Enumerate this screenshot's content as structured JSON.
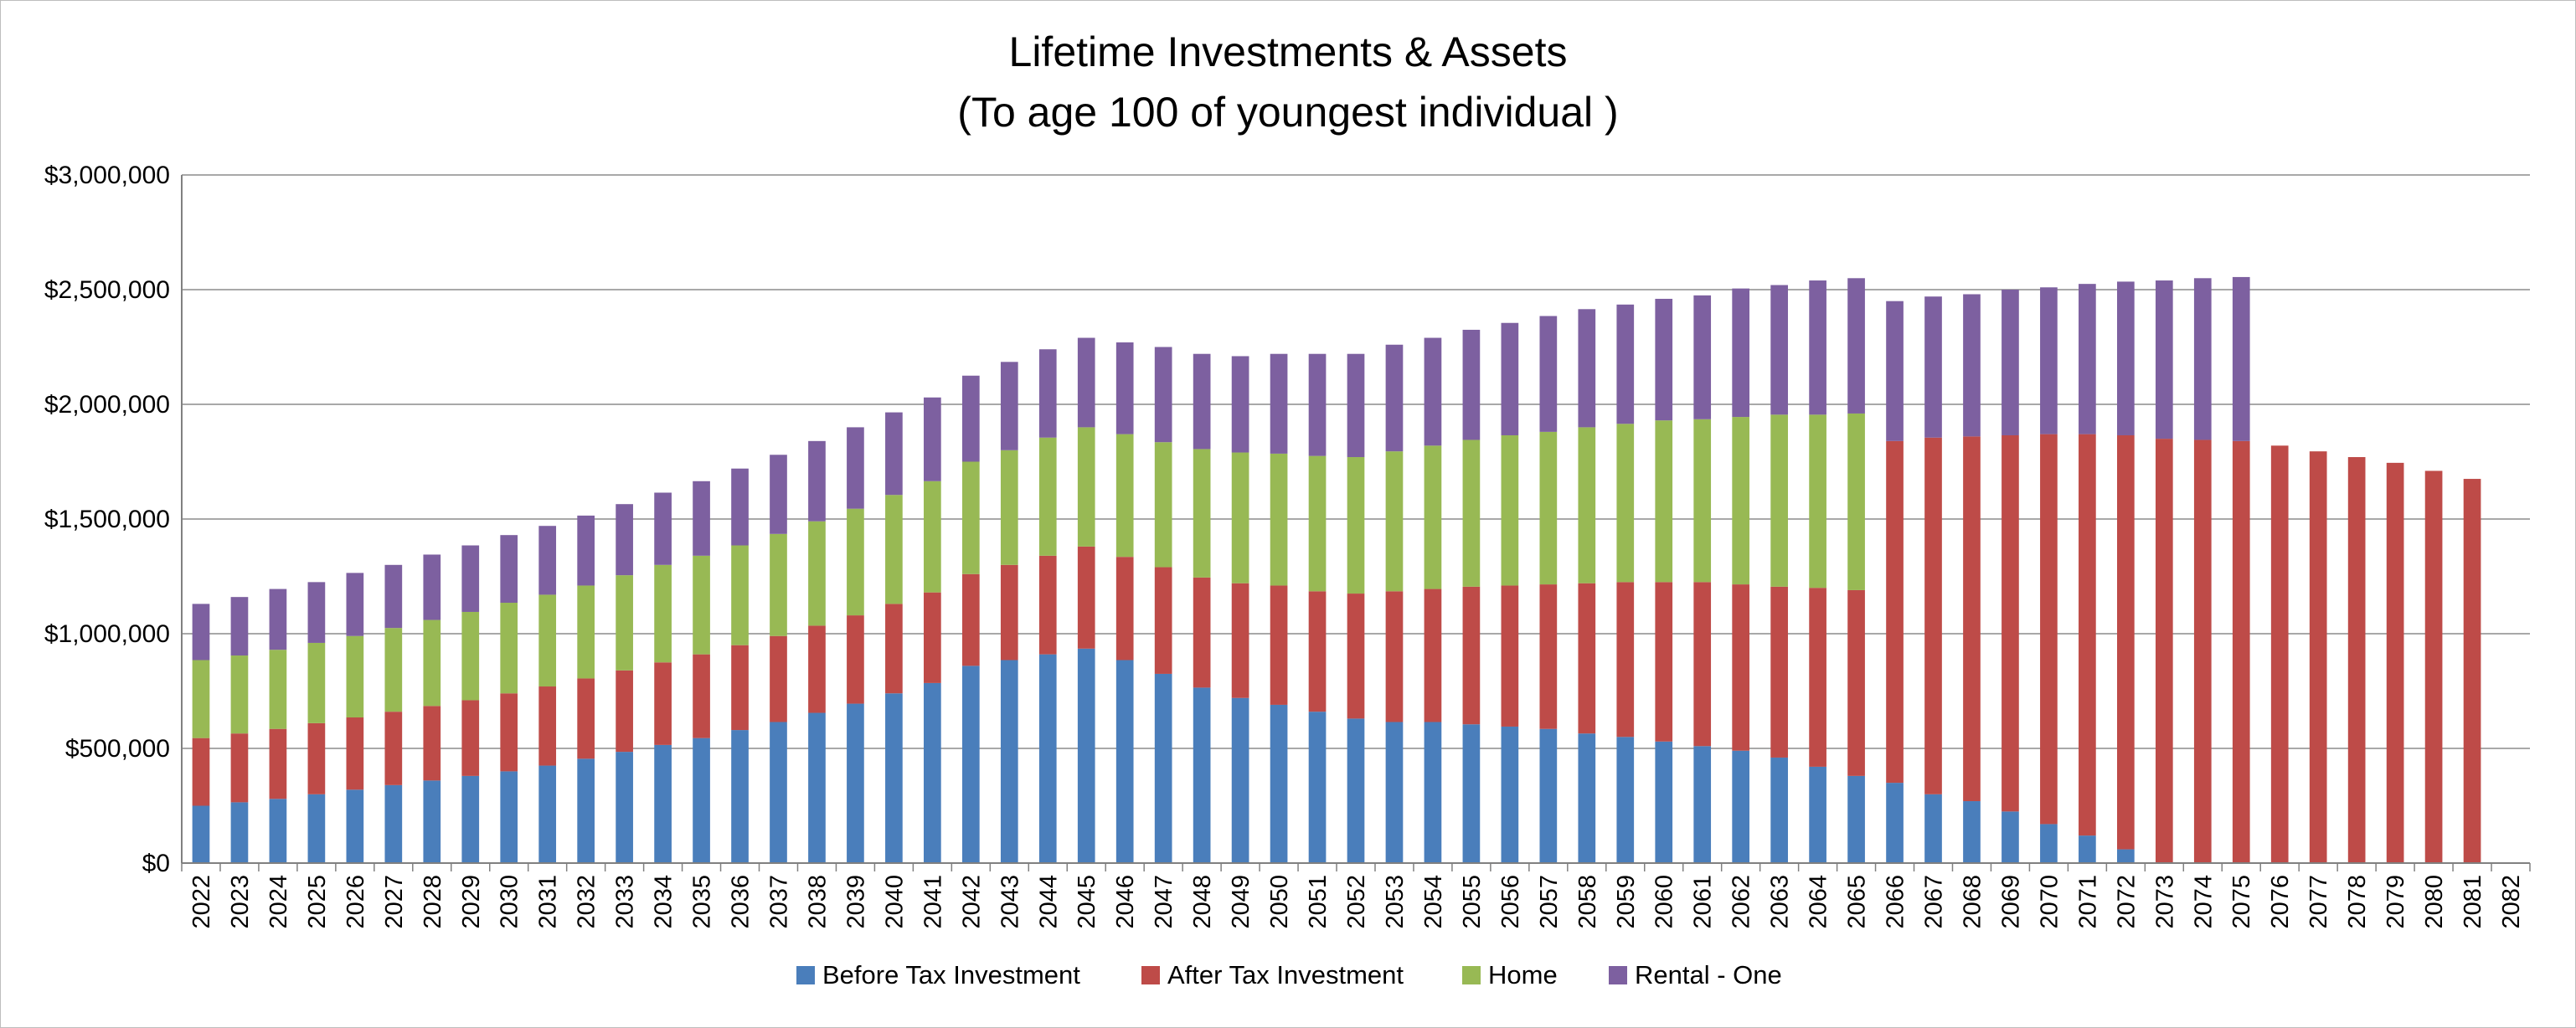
{
  "chart_data": {
    "type": "bar",
    "stacked": true,
    "title": "Lifetime Investments & Assets",
    "subtitle": "(To age 100 of youngest individual )",
    "xlabel": "",
    "ylabel": "",
    "ylim": [
      0,
      3000000
    ],
    "yticks": [
      0,
      500000,
      1000000,
      1500000,
      2000000,
      2500000,
      3000000
    ],
    "ytick_labels": [
      "$0",
      "$500,000",
      "$1,000,000",
      "$1,500,000",
      "$2,000,000",
      "$2,500,000",
      "$3,000,000"
    ],
    "grid": true,
    "legend_position": "bottom",
    "categories": [
      "2022",
      "2023",
      "2024",
      "2025",
      "2026",
      "2027",
      "2028",
      "2029",
      "2030",
      "2031",
      "2032",
      "2033",
      "2034",
      "2035",
      "2036",
      "2037",
      "2038",
      "2039",
      "2040",
      "2041",
      "2042",
      "2043",
      "2044",
      "2045",
      "2046",
      "2047",
      "2048",
      "2049",
      "2050",
      "2051",
      "2052",
      "2053",
      "2054",
      "2055",
      "2056",
      "2057",
      "2058",
      "2059",
      "2060",
      "2061",
      "2062",
      "2063",
      "2064",
      "2065",
      "2066",
      "2067",
      "2068",
      "2069",
      "2070",
      "2071",
      "2072",
      "2073",
      "2074",
      "2075",
      "2076",
      "2077",
      "2078",
      "2079",
      "2080",
      "2081",
      "2082"
    ],
    "series": [
      {
        "name": "Before Tax Investment",
        "color": "#4a7ebb",
        "values": [
          250000,
          265000,
          280000,
          300000,
          320000,
          340000,
          360000,
          380000,
          400000,
          425000,
          455000,
          485000,
          515000,
          545000,
          580000,
          615000,
          655000,
          695000,
          740000,
          785000,
          860000,
          885000,
          910000,
          935000,
          885000,
          825000,
          765000,
          720000,
          690000,
          660000,
          630000,
          615000,
          615000,
          605000,
          595000,
          585000,
          565000,
          550000,
          530000,
          510000,
          490000,
          460000,
          420000,
          380000,
          350000,
          300000,
          270000,
          225000,
          170000,
          120000,
          60000,
          0,
          0,
          0,
          0,
          0,
          0,
          0,
          0,
          0,
          0
        ]
      },
      {
        "name": "After Tax Investment",
        "color": "#be4b48",
        "values": [
          295000,
          300000,
          305000,
          310000,
          315000,
          320000,
          325000,
          330000,
          340000,
          345000,
          350000,
          355000,
          360000,
          365000,
          370000,
          375000,
          380000,
          385000,
          390000,
          395000,
          400000,
          415000,
          430000,
          445000,
          450000,
          465000,
          480000,
          500000,
          520000,
          525000,
          545000,
          570000,
          580000,
          600000,
          615000,
          630000,
          655000,
          675000,
          695000,
          715000,
          725000,
          745000,
          780000,
          810000,
          1490000,
          1555000,
          1590000,
          1640000,
          1700000,
          1750000,
          1805000,
          1850000,
          1845000,
          1840000,
          1820000,
          1795000,
          1770000,
          1745000,
          1710000,
          1675000,
          0
        ]
      },
      {
        "name": "Home",
        "color": "#98b954",
        "values": [
          340000,
          340000,
          345000,
          350000,
          355000,
          365000,
          375000,
          385000,
          395000,
          400000,
          405000,
          415000,
          425000,
          430000,
          435000,
          445000,
          455000,
          465000,
          475000,
          485000,
          490000,
          500000,
          515000,
          520000,
          535000,
          545000,
          560000,
          570000,
          575000,
          590000,
          595000,
          610000,
          625000,
          640000,
          655000,
          665000,
          680000,
          690000,
          705000,
          710000,
          730000,
          750000,
          755000,
          770000,
          0,
          0,
          0,
          0,
          0,
          0,
          0,
          0,
          0,
          0,
          0,
          0,
          0,
          0,
          0,
          0,
          0
        ]
      },
      {
        "name": "Rental - One",
        "color": "#7d60a0",
        "values": [
          245000,
          255000,
          265000,
          265000,
          275000,
          275000,
          285000,
          290000,
          295000,
          300000,
          305000,
          310000,
          315000,
          325000,
          335000,
          345000,
          350000,
          355000,
          360000,
          365000,
          375000,
          385000,
          385000,
          390000,
          400000,
          415000,
          415000,
          420000,
          435000,
          445000,
          450000,
          465000,
          470000,
          480000,
          490000,
          505000,
          515000,
          520000,
          530000,
          540000,
          560000,
          565000,
          585000,
          590000,
          610000,
          615000,
          620000,
          635000,
          640000,
          655000,
          670000,
          690000,
          705000,
          715000,
          0,
          0,
          0,
          0,
          0,
          0,
          0
        ]
      }
    ]
  }
}
